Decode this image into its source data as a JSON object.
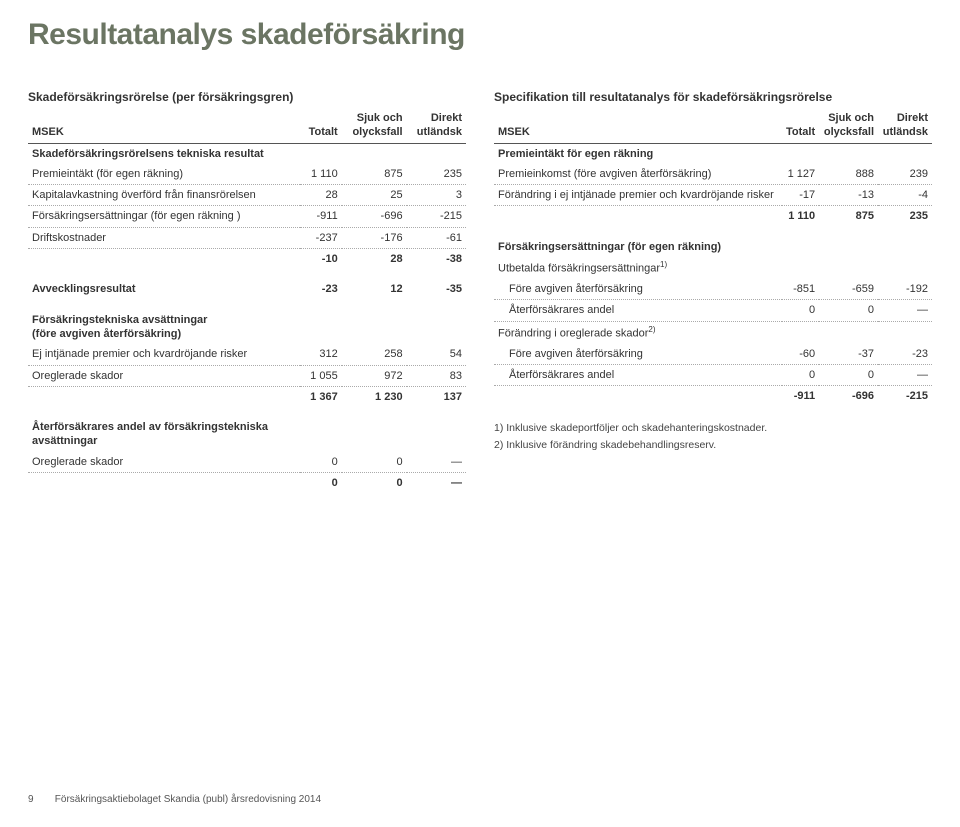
{
  "page_title": "Resultatanalys skadeförsäkring",
  "footer": {
    "page": "9",
    "text": "Försäkringsaktiebolaget Skandia (publ) årsredovisning 2014"
  },
  "left": {
    "section": "Skadeförsäkringsrörelse (per försäkringsgren)",
    "head": {
      "c0": "MSEK",
      "c1": "Totalt",
      "c2": "Sjuk och\nolycksfall",
      "c3": "Direkt\nutländsk"
    },
    "rows": [
      {
        "label": "Skadeförsäkringsrörelsens tekniska resultat",
        "v": [
          "",
          "",
          ""
        ],
        "bold": true,
        "dotted": false
      },
      {
        "label": "Premieintäkt (för egen räkning)",
        "v": [
          "1 110",
          "875",
          "235"
        ],
        "dotted": true
      },
      {
        "label": "Kapitalavkastning överförd från finansrörelsen",
        "v": [
          "28",
          "25",
          "3"
        ],
        "dotted": true
      },
      {
        "label": "Försäkringsersättningar (för egen räkning )",
        "v": [
          "-911",
          "-696",
          "-215"
        ],
        "dotted": true
      },
      {
        "label": "Driftskostnader",
        "v": [
          "-237",
          "-176",
          "-61"
        ],
        "dotted": true
      },
      {
        "label": "",
        "v": [
          "-10",
          "28",
          "-38"
        ],
        "bold": true,
        "dotted": false
      },
      {
        "spacer": true
      },
      {
        "label": "Avvecklingsresultat",
        "v": [
          "-23",
          "12",
          "-35"
        ],
        "bold": true,
        "dotted": false
      },
      {
        "spacer": true
      },
      {
        "label": "Försäkringstekniska avsättningar\n(före avgiven återförsäkring)",
        "v": [
          "",
          "",
          ""
        ],
        "bold": true,
        "dotted": false
      },
      {
        "label": "Ej intjänade premier och kvardröjande risker",
        "v": [
          "312",
          "258",
          "54"
        ],
        "dotted": true
      },
      {
        "label": "Oreglerade skador",
        "v": [
          "1 055",
          "972",
          "83"
        ],
        "dotted": true
      },
      {
        "label": "",
        "v": [
          "1 367",
          "1 230",
          "137"
        ],
        "bold": true,
        "dotted": false
      },
      {
        "spacer": true
      },
      {
        "label": "Återförsäkrares andel av försäkringstekniska\navsättningar",
        "v": [
          "",
          "",
          ""
        ],
        "bold": true,
        "dotted": false
      },
      {
        "label": "Oreglerade skador",
        "v": [
          "0",
          "0",
          "—"
        ],
        "dotted": true
      },
      {
        "label": "",
        "v": [
          "0",
          "0",
          "—"
        ],
        "bold": true,
        "dotted": false
      }
    ]
  },
  "right": {
    "section": "Specifikation till resultatanalys för skadeförsäkringsrörelse",
    "head": {
      "c0": "MSEK",
      "c1": "Totalt",
      "c2": "Sjuk och\nolycksfall",
      "c3": "Direkt\nutländsk"
    },
    "rows": [
      {
        "label": "Premieintäkt för egen räkning",
        "v": [
          "",
          "",
          ""
        ],
        "bold": true,
        "dotted": false
      },
      {
        "label": "Premieinkomst (före avgiven återförsäkring)",
        "v": [
          "1 127",
          "888",
          "239"
        ],
        "dotted": true
      },
      {
        "label": "Förändring i ej intjänade premier och kvardröjande risker",
        "v": [
          "-17",
          "-13",
          "-4"
        ],
        "dotted": true
      },
      {
        "label": "",
        "v": [
          "1 110",
          "875",
          "235"
        ],
        "bold": true,
        "dotted": false
      },
      {
        "spacer": true
      },
      {
        "label": "Försäkringsersättningar (för egen räkning)",
        "v": [
          "",
          "",
          ""
        ],
        "bold": true,
        "dotted": false
      },
      {
        "label": "Utbetalda försäkringsersättningar",
        "sup": "1)",
        "v": [
          "",
          "",
          ""
        ],
        "dotted": false
      },
      {
        "label": "  Före avgiven återförsäkring",
        "v": [
          "-851",
          "-659",
          "-192"
        ],
        "dotted": true
      },
      {
        "label": "  Återförsäkrares andel",
        "v": [
          "0",
          "0",
          "—"
        ],
        "dotted": true
      },
      {
        "label": "Förändring i oreglerade skador",
        "sup": "2)",
        "v": [
          "",
          "",
          ""
        ],
        "dotted": false
      },
      {
        "label": "  Före avgiven återförsäkring",
        "v": [
          "-60",
          "-37",
          "-23"
        ],
        "dotted": true
      },
      {
        "label": "  Återförsäkrares andel",
        "v": [
          "0",
          "0",
          "—"
        ],
        "dotted": true
      },
      {
        "label": "",
        "v": [
          "-911",
          "-696",
          "-215"
        ],
        "bold": true,
        "dotted": false
      }
    ],
    "footnotes": [
      "1) Inklusive skadeportföljer och skadehanteringskostnader.",
      "2) Inklusive förändring skadebehandlingsreserv."
    ]
  }
}
